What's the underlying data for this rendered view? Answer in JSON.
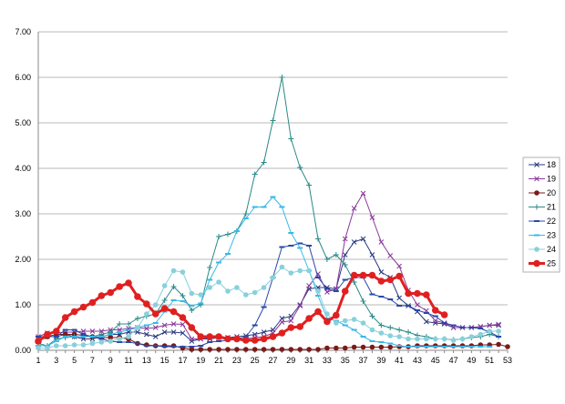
{
  "chart_data": {
    "type": "line",
    "title": "",
    "xlabel": "",
    "ylabel": "",
    "xlim": [
      1,
      53
    ],
    "ylim": [
      0,
      7
    ],
    "y_ticks": [
      "0.00",
      "1.00",
      "2.00",
      "3.00",
      "4.00",
      "5.00",
      "6.00",
      "7.00"
    ],
    "x_ticks": [
      "1",
      "3",
      "5",
      "7",
      "9",
      "11",
      "13",
      "15",
      "17",
      "19",
      "21",
      "23",
      "25",
      "27",
      "29",
      "31",
      "33",
      "35",
      "37",
      "39",
      "41",
      "43",
      "45",
      "47",
      "49",
      "51",
      "53"
    ],
    "grid": "horizontal",
    "legend_position": "right",
    "series": [
      {
        "name": "18",
        "color": "#2a3a80",
        "marker": "x",
        "values": [
          0.2,
          0.3,
          0.3,
          0.35,
          0.3,
          0.25,
          0.25,
          0.3,
          0.35,
          0.35,
          0.4,
          0.4,
          0.35,
          0.3,
          0.4,
          0.4,
          0.38,
          0.2,
          0.25,
          0.25,
          0.28,
          0.28,
          0.3,
          0.32,
          0.35,
          0.4,
          0.45,
          0.7,
          0.75,
          1.0,
          1.35,
          1.38,
          1.38,
          1.35,
          2.1,
          2.38,
          2.45,
          2.1,
          1.72,
          1.6,
          1.15,
          0.98,
          0.85,
          0.63,
          0.6,
          0.58,
          0.5,
          0.5,
          0.5,
          0.52,
          0.55,
          0.55
        ]
      },
      {
        "name": "19",
        "color": "#8a3a9a",
        "marker": "x",
        "values": [
          0.3,
          0.38,
          0.38,
          0.4,
          0.4,
          0.42,
          0.42,
          0.42,
          0.45,
          0.45,
          0.48,
          0.5,
          0.48,
          0.5,
          0.55,
          0.58,
          0.57,
          0.25,
          0.25,
          0.28,
          0.3,
          0.28,
          0.25,
          0.25,
          0.28,
          0.3,
          0.38,
          0.62,
          0.65,
          0.98,
          1.42,
          1.68,
          1.28,
          1.35,
          2.45,
          3.12,
          3.45,
          2.92,
          2.38,
          2.08,
          1.85,
          1.32,
          1.0,
          0.87,
          0.65,
          0.6,
          0.5,
          0.5,
          0.5,
          0.52,
          0.55,
          0.57
        ]
      },
      {
        "name": "20",
        "color": "#7a1a1a",
        "marker": "dot",
        "values": [
          0.2,
          0.3,
          0.35,
          0.35,
          0.35,
          0.33,
          0.3,
          0.28,
          0.28,
          0.28,
          0.25,
          0.15,
          0.12,
          0.1,
          0.1,
          0.1,
          0.05,
          0.02,
          0.02,
          0.02,
          0.02,
          0.02,
          0.02,
          0.02,
          0.02,
          0.02,
          0.02,
          0.02,
          0.02,
          0.02,
          0.02,
          0.02,
          0.05,
          0.05,
          0.05,
          0.07,
          0.07,
          0.07,
          0.07,
          0.07,
          0.08,
          0.08,
          0.1,
          0.1,
          0.1,
          0.1,
          0.1,
          0.1,
          0.1,
          0.12,
          0.12,
          0.13,
          0.08
        ]
      },
      {
        "name": "21",
        "color": "#2a8a88",
        "marker": "plus",
        "values": [
          0.15,
          0.1,
          0.25,
          0.28,
          0.3,
          0.3,
          0.3,
          0.35,
          0.4,
          0.58,
          0.58,
          0.7,
          0.75,
          0.8,
          1.1,
          1.4,
          1.2,
          0.88,
          1.0,
          1.82,
          2.5,
          2.55,
          2.62,
          3.0,
          3.87,
          4.13,
          5.05,
          6.0,
          4.65,
          4.02,
          3.63,
          2.45,
          2.0,
          2.1,
          1.88,
          1.5,
          1.08,
          0.75,
          0.55,
          0.5,
          0.45,
          0.4,
          0.33,
          0.3,
          0.25,
          0.25,
          0.23,
          0.25,
          0.28,
          0.3,
          0.35,
          0.3
        ]
      },
      {
        "name": "22",
        "color": "#2848a8",
        "marker": "dash",
        "values": [
          0.3,
          0.3,
          0.3,
          0.45,
          0.45,
          0.35,
          0.3,
          0.25,
          0.2,
          0.18,
          0.18,
          0.15,
          0.1,
          0.1,
          0.08,
          0.08,
          0.08,
          0.08,
          0.1,
          0.18,
          0.2,
          0.22,
          0.25,
          0.3,
          0.55,
          0.95,
          1.6,
          2.27,
          2.3,
          2.35,
          2.3,
          1.6,
          1.35,
          1.3,
          1.55,
          1.6,
          1.6,
          1.23,
          1.18,
          1.12,
          0.98,
          0.98,
          0.88,
          0.82,
          0.75,
          0.6,
          0.55,
          0.5,
          0.5,
          0.48,
          0.4,
          0.3
        ]
      },
      {
        "name": "23",
        "color": "#38b8e8",
        "marker": "dash",
        "values": [
          0.1,
          0.1,
          0.2,
          0.3,
          0.3,
          0.3,
          0.3,
          0.3,
          0.35,
          0.4,
          0.45,
          0.5,
          0.55,
          0.6,
          0.85,
          1.1,
          1.08,
          0.98,
          1.03,
          1.55,
          1.93,
          2.12,
          2.62,
          2.9,
          3.15,
          3.15,
          3.37,
          3.15,
          2.58,
          2.25,
          1.75,
          1.2,
          0.7,
          0.65,
          0.55,
          0.45,
          0.3,
          0.2,
          0.18,
          0.15,
          0.1,
          0.08,
          0.08,
          0.08,
          0.08,
          0.08,
          0.08,
          0.08,
          0.08,
          0.08,
          0.08
        ]
      },
      {
        "name": "24",
        "color": "#88d0dc",
        "marker": "dot",
        "values": [
          0.05,
          0.05,
          0.1,
          0.1,
          0.12,
          0.12,
          0.15,
          0.18,
          0.2,
          0.25,
          0.3,
          0.5,
          0.8,
          1.0,
          1.42,
          1.75,
          1.72,
          1.25,
          1.22,
          1.38,
          1.5,
          1.3,
          1.38,
          1.22,
          1.27,
          1.38,
          1.6,
          1.83,
          1.7,
          1.75,
          1.75,
          1.3,
          0.8,
          0.6,
          0.65,
          0.68,
          0.6,
          0.45,
          0.38,
          0.32,
          0.3,
          0.25,
          0.25,
          0.25,
          0.25,
          0.25,
          0.22,
          0.25,
          0.3,
          0.35,
          0.42,
          0.42
        ]
      },
      {
        "name": "25",
        "color": "#e02020",
        "marker": "dot-bold",
        "values": [
          0.2,
          0.35,
          0.42,
          0.72,
          0.85,
          0.95,
          1.05,
          1.2,
          1.27,
          1.4,
          1.48,
          1.18,
          1.02,
          0.8,
          0.92,
          0.85,
          0.72,
          0.5,
          0.3,
          0.3,
          0.3,
          0.25,
          0.25,
          0.22,
          0.22,
          0.25,
          0.3,
          0.38,
          0.5,
          0.52,
          0.7,
          0.85,
          0.63,
          0.77,
          1.3,
          1.65,
          1.65,
          1.65,
          1.52,
          1.55,
          1.63,
          1.25,
          1.25,
          1.22,
          0.88,
          0.78
        ]
      }
    ]
  }
}
